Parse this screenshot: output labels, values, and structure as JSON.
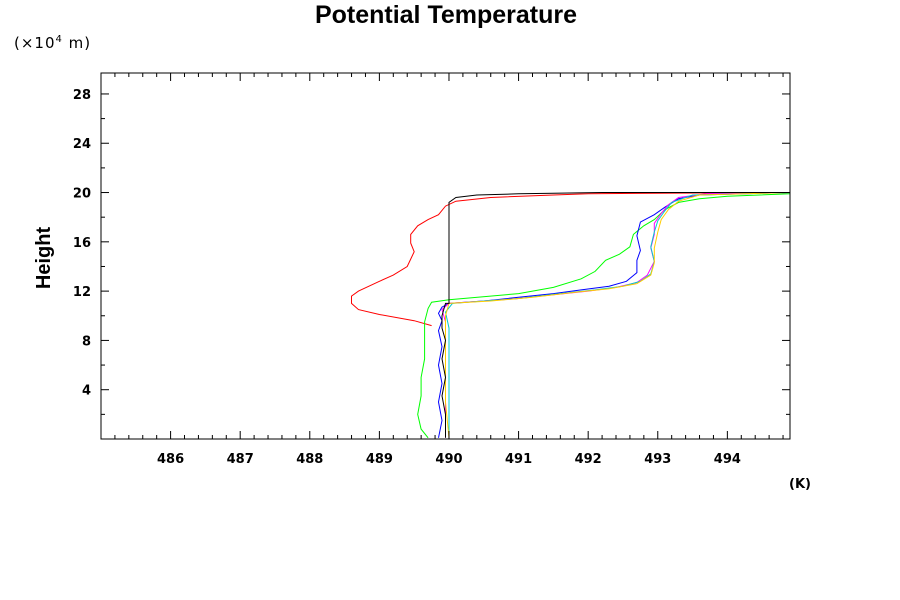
{
  "chart_data": {
    "type": "line",
    "title": "Potential Temperature",
    "ylabel": "Height",
    "y_unit_prefix": "(×10",
    "y_unit_exponent": "4",
    "y_unit_suffix": " m)",
    "xlabel": "(K)",
    "xlim": [
      485.0,
      494.9
    ],
    "ylim": [
      0,
      29.7
    ],
    "x_ticks": [
      486,
      487,
      488,
      489,
      490,
      491,
      492,
      493,
      494
    ],
    "y_ticks": [
      4,
      8,
      12,
      16,
      20,
      24,
      28
    ],
    "series": [
      {
        "color": "#ff0000",
        "points": [
          [
            489.75,
            9.2
          ],
          [
            489.5,
            9.6
          ],
          [
            489.0,
            10.1
          ],
          [
            488.7,
            10.5
          ],
          [
            488.6,
            11.0
          ],
          [
            488.6,
            11.6
          ],
          [
            488.7,
            12.0
          ],
          [
            489.0,
            12.8
          ],
          [
            489.2,
            13.3
          ],
          [
            489.4,
            14.0
          ],
          [
            489.45,
            14.6
          ],
          [
            489.5,
            15.2
          ],
          [
            489.45,
            15.9
          ],
          [
            489.45,
            16.6
          ],
          [
            489.55,
            17.3
          ],
          [
            489.7,
            17.8
          ],
          [
            489.85,
            18.2
          ],
          [
            489.95,
            18.9
          ],
          [
            490.1,
            19.3
          ],
          [
            490.6,
            19.6
          ],
          [
            491.5,
            19.8
          ],
          [
            492.0,
            19.9
          ],
          [
            493.0,
            19.95
          ],
          [
            494.9,
            20.0
          ]
        ]
      },
      {
        "color": "#00ff00",
        "points": [
          [
            489.7,
            0.1
          ],
          [
            489.6,
            0.8
          ],
          [
            489.55,
            2.0
          ],
          [
            489.6,
            3.5
          ],
          [
            489.6,
            5.0
          ],
          [
            489.65,
            6.5
          ],
          [
            489.65,
            8.0
          ],
          [
            489.65,
            9.5
          ],
          [
            489.7,
            10.6
          ],
          [
            489.75,
            11.1
          ],
          [
            490.0,
            11.3
          ],
          [
            491.0,
            11.8
          ],
          [
            491.5,
            12.3
          ],
          [
            491.9,
            13.0
          ],
          [
            492.1,
            13.6
          ],
          [
            492.25,
            14.5
          ],
          [
            492.45,
            15.0
          ],
          [
            492.6,
            15.6
          ],
          [
            492.65,
            16.6
          ],
          [
            492.8,
            17.3
          ],
          [
            492.95,
            17.8
          ],
          [
            493.1,
            18.6
          ],
          [
            493.3,
            19.2
          ],
          [
            493.6,
            19.5
          ],
          [
            494.0,
            19.7
          ],
          [
            494.9,
            19.9
          ]
        ]
      },
      {
        "color": "#0000ff",
        "points": [
          [
            489.85,
            0.1
          ],
          [
            489.9,
            1.5
          ],
          [
            489.85,
            3.0
          ],
          [
            489.9,
            4.5
          ],
          [
            489.85,
            6.0
          ],
          [
            489.9,
            7.5
          ],
          [
            489.85,
            8.8
          ],
          [
            489.9,
            9.6
          ],
          [
            489.85,
            10.2
          ],
          [
            489.9,
            10.7
          ],
          [
            490.0,
            11.0
          ],
          [
            490.5,
            11.2
          ],
          [
            491.0,
            11.5
          ],
          [
            491.5,
            11.8
          ],
          [
            491.9,
            12.1
          ],
          [
            492.3,
            12.4
          ],
          [
            492.55,
            12.8
          ],
          [
            492.7,
            13.5
          ],
          [
            492.7,
            14.5
          ],
          [
            492.75,
            15.3
          ],
          [
            492.7,
            16.5
          ],
          [
            492.75,
            17.6
          ],
          [
            492.95,
            18.2
          ],
          [
            493.1,
            18.8
          ],
          [
            493.3,
            19.5
          ],
          [
            493.6,
            19.8
          ],
          [
            494.9,
            20.0
          ]
        ]
      },
      {
        "color": "#ff00ff",
        "points": [
          [
            489.95,
            0.1
          ],
          [
            489.95,
            2.0
          ],
          [
            489.95,
            4.0
          ],
          [
            489.95,
            6.0
          ],
          [
            489.95,
            8.0
          ],
          [
            489.95,
            9.5
          ],
          [
            489.9,
            10.5
          ],
          [
            490.0,
            11.0
          ],
          [
            490.5,
            11.2
          ],
          [
            491.0,
            11.4
          ],
          [
            491.5,
            11.7
          ],
          [
            492.0,
            12.0
          ],
          [
            492.4,
            12.3
          ],
          [
            492.7,
            12.7
          ],
          [
            492.85,
            13.3
          ],
          [
            492.95,
            14.4
          ],
          [
            492.9,
            15.5
          ],
          [
            492.95,
            16.6
          ],
          [
            492.95,
            17.5
          ],
          [
            493.05,
            18.3
          ],
          [
            493.15,
            19.0
          ],
          [
            493.3,
            19.6
          ],
          [
            493.7,
            19.9
          ],
          [
            494.9,
            20.0
          ]
        ]
      },
      {
        "color": "#00cccc",
        "points": [
          [
            490.0,
            0.1
          ],
          [
            490.0,
            3.0
          ],
          [
            490.0,
            6.0
          ],
          [
            490.0,
            9.0
          ],
          [
            489.95,
            10.3
          ],
          [
            490.05,
            11.0
          ],
          [
            490.5,
            11.2
          ],
          [
            491.0,
            11.4
          ],
          [
            491.6,
            11.8
          ],
          [
            492.1,
            12.1
          ],
          [
            492.5,
            12.4
          ],
          [
            492.75,
            12.8
          ],
          [
            492.9,
            13.4
          ],
          [
            492.95,
            14.4
          ],
          [
            492.9,
            15.6
          ],
          [
            492.95,
            16.8
          ],
          [
            493.0,
            17.7
          ],
          [
            493.1,
            18.5
          ],
          [
            493.2,
            19.2
          ],
          [
            493.5,
            19.8
          ],
          [
            494.9,
            20.0
          ]
        ]
      },
      {
        "color": "#ffcc00",
        "points": [
          [
            490.0,
            0.1
          ],
          [
            489.95,
            3.0
          ],
          [
            489.95,
            6.0
          ],
          [
            489.95,
            8.5
          ],
          [
            489.95,
            10.0
          ],
          [
            490.0,
            11.0
          ],
          [
            490.6,
            11.2
          ],
          [
            491.2,
            11.5
          ],
          [
            491.8,
            11.9
          ],
          [
            492.3,
            12.2
          ],
          [
            492.7,
            12.6
          ],
          [
            492.9,
            13.3
          ],
          [
            492.95,
            14.3
          ],
          [
            492.95,
            15.5
          ],
          [
            493.0,
            16.8
          ],
          [
            493.05,
            17.8
          ],
          [
            493.15,
            18.6
          ],
          [
            493.3,
            19.3
          ],
          [
            493.6,
            19.8
          ],
          [
            494.9,
            20.0
          ]
        ]
      },
      {
        "color": "#000000",
        "points": [
          [
            489.95,
            0.1
          ],
          [
            489.95,
            2.0
          ],
          [
            489.9,
            3.5
          ],
          [
            489.95,
            5.0
          ],
          [
            489.9,
            6.5
          ],
          [
            489.95,
            8.0
          ],
          [
            489.9,
            9.0
          ],
          [
            489.9,
            10.0
          ],
          [
            489.95,
            11.0
          ],
          [
            490.0,
            11.0
          ],
          [
            490.0,
            13.0
          ],
          [
            490.0,
            16.0
          ],
          [
            490.0,
            19.2
          ],
          [
            490.1,
            19.6
          ],
          [
            490.4,
            19.8
          ],
          [
            491.0,
            19.9
          ],
          [
            491.5,
            19.95
          ],
          [
            492.2,
            20.0
          ],
          [
            494.9,
            20.0
          ]
        ]
      }
    ]
  }
}
